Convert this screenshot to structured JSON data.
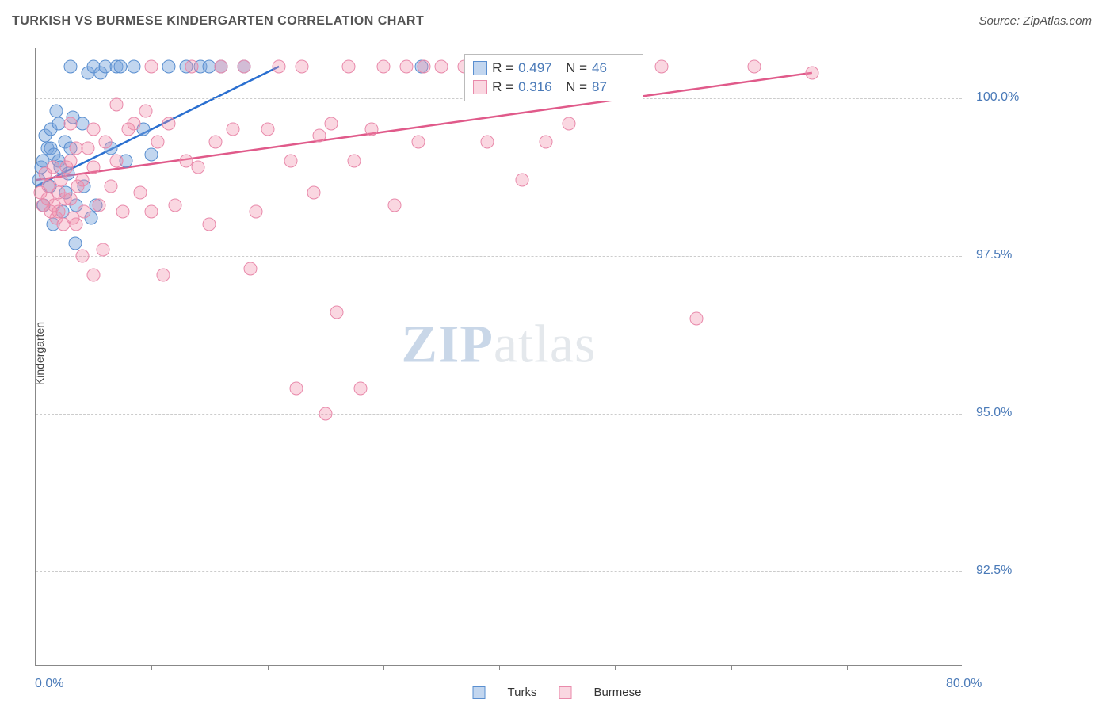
{
  "title": "TURKISH VS BURMESE KINDERGARTEN CORRELATION CHART",
  "source": "Source: ZipAtlas.com",
  "ylabel": "Kindergarten",
  "xlim": [
    0.0,
    80.0
  ],
  "ylim": [
    91.0,
    100.8
  ],
  "xtick_positions": [
    10,
    20,
    30,
    40,
    50,
    60,
    70,
    80
  ],
  "xlim_labels": [
    "0.0%",
    "80.0%"
  ],
  "yticks": [
    {
      "v": 92.5,
      "label": "92.5%"
    },
    {
      "v": 95.0,
      "label": "95.0%"
    },
    {
      "v": 97.5,
      "label": "97.5%"
    },
    {
      "v": 100.0,
      "label": "100.0%"
    }
  ],
  "colors": {
    "turks_fill": "rgba(120,165,220,0.45)",
    "turks_stroke": "#5a8fd0",
    "burmese_fill": "rgba(240,140,170,0.35)",
    "burmese_stroke": "#e98aab",
    "turks_line": "#2a6fd0",
    "burmese_line": "#e05a8a",
    "axis_label": "#4a7ab8",
    "grid": "#cccccc",
    "border": "#888888"
  },
  "marker_radius": 8.5,
  "series": [
    {
      "name": "Turks",
      "R": "0.497",
      "N": "46",
      "color_fill_key": "turks_fill",
      "color_stroke_key": "turks_stroke",
      "trend": {
        "x1": 0,
        "y1": 98.6,
        "x2": 21,
        "y2": 100.5,
        "color_key": "turks_line"
      },
      "points": [
        [
          0.3,
          98.7
        ],
        [
          0.5,
          98.9
        ],
        [
          0.6,
          99.0
        ],
        [
          0.8,
          99.4
        ],
        [
          0.7,
          98.3
        ],
        [
          1.0,
          99.2
        ],
        [
          1.2,
          98.6
        ],
        [
          1.3,
          99.5
        ],
        [
          1.5,
          98.0
        ],
        [
          1.3,
          99.2
        ],
        [
          1.6,
          99.1
        ],
        [
          1.8,
          99.8
        ],
        [
          2.0,
          99.0
        ],
        [
          2.1,
          98.9
        ],
        [
          2.0,
          99.6
        ],
        [
          2.3,
          98.2
        ],
        [
          2.5,
          99.3
        ],
        [
          2.6,
          98.5
        ],
        [
          2.8,
          98.8
        ],
        [
          3.0,
          99.2
        ],
        [
          3.0,
          100.5
        ],
        [
          3.2,
          99.7
        ],
        [
          3.5,
          98.3
        ],
        [
          3.4,
          97.7
        ],
        [
          4.0,
          99.6
        ],
        [
          4.2,
          98.6
        ],
        [
          4.5,
          100.4
        ],
        [
          4.8,
          98.1
        ],
        [
          5.0,
          100.5
        ],
        [
          5.2,
          98.3
        ],
        [
          5.6,
          100.4
        ],
        [
          6.0,
          100.5
        ],
        [
          6.5,
          99.2
        ],
        [
          7.0,
          100.5
        ],
        [
          7.3,
          100.5
        ],
        [
          7.8,
          99.0
        ],
        [
          8.5,
          100.5
        ],
        [
          9.3,
          99.5
        ],
        [
          10.0,
          99.1
        ],
        [
          11.5,
          100.5
        ],
        [
          13.0,
          100.5
        ],
        [
          14.2,
          100.5
        ],
        [
          15.0,
          100.5
        ],
        [
          16.0,
          100.5
        ],
        [
          18.0,
          100.5
        ],
        [
          33.3,
          100.5
        ]
      ]
    },
    {
      "name": "Burmese",
      "R": "0.316",
      "N": "87",
      "color_fill_key": "burmese_fill",
      "color_stroke_key": "burmese_stroke",
      "trend": {
        "x1": 0,
        "y1": 98.7,
        "x2": 67,
        "y2": 100.4,
        "color_key": "burmese_line"
      },
      "points": [
        [
          0.4,
          98.5
        ],
        [
          0.6,
          98.3
        ],
        [
          0.8,
          98.8
        ],
        [
          1.0,
          98.4
        ],
        [
          1.1,
          98.6
        ],
        [
          1.3,
          98.2
        ],
        [
          1.5,
          98.9
        ],
        [
          1.6,
          98.3
        ],
        [
          1.8,
          98.1
        ],
        [
          2.0,
          98.5
        ],
        [
          2.0,
          98.2
        ],
        [
          2.2,
          98.7
        ],
        [
          2.4,
          98.0
        ],
        [
          2.5,
          98.4
        ],
        [
          2.7,
          98.9
        ],
        [
          3.0,
          98.4
        ],
        [
          3.0,
          99.0
        ],
        [
          3.0,
          99.6
        ],
        [
          3.2,
          98.1
        ],
        [
          3.5,
          99.2
        ],
        [
          3.5,
          98.0
        ],
        [
          3.6,
          98.6
        ],
        [
          4.0,
          98.7
        ],
        [
          4.0,
          97.5
        ],
        [
          4.2,
          98.2
        ],
        [
          4.5,
          99.2
        ],
        [
          5.0,
          98.9
        ],
        [
          5.0,
          99.5
        ],
        [
          5.0,
          97.2
        ],
        [
          5.5,
          98.3
        ],
        [
          5.8,
          97.6
        ],
        [
          6.0,
          99.3
        ],
        [
          6.5,
          98.6
        ],
        [
          7.0,
          99.0
        ],
        [
          7.0,
          99.9
        ],
        [
          7.5,
          98.2
        ],
        [
          8.0,
          99.5
        ],
        [
          8.5,
          99.6
        ],
        [
          9.0,
          98.5
        ],
        [
          9.5,
          99.8
        ],
        [
          10.0,
          98.2
        ],
        [
          10.0,
          100.5
        ],
        [
          10.5,
          99.3
        ],
        [
          11.0,
          97.2
        ],
        [
          11.5,
          99.6
        ],
        [
          12.0,
          98.3
        ],
        [
          13.0,
          99.0
        ],
        [
          13.5,
          100.5
        ],
        [
          14.0,
          98.9
        ],
        [
          15.0,
          98.0
        ],
        [
          15.5,
          99.3
        ],
        [
          16.0,
          100.5
        ],
        [
          17.0,
          99.5
        ],
        [
          18.0,
          100.5
        ],
        [
          18.5,
          97.3
        ],
        [
          19.0,
          98.2
        ],
        [
          20.0,
          99.5
        ],
        [
          21.0,
          100.5
        ],
        [
          22.0,
          99.0
        ],
        [
          22.5,
          95.4
        ],
        [
          23.0,
          100.5
        ],
        [
          24.0,
          98.5
        ],
        [
          24.5,
          99.4
        ],
        [
          25.0,
          95.0
        ],
        [
          25.5,
          99.6
        ],
        [
          26.0,
          96.6
        ],
        [
          27.0,
          100.5
        ],
        [
          27.5,
          99.0
        ],
        [
          28.0,
          95.4
        ],
        [
          29.0,
          99.5
        ],
        [
          30.0,
          100.5
        ],
        [
          31.0,
          98.3
        ],
        [
          32.0,
          100.5
        ],
        [
          33.0,
          99.3
        ],
        [
          33.5,
          100.5
        ],
        [
          35.0,
          100.5
        ],
        [
          37.0,
          100.5
        ],
        [
          39.0,
          99.3
        ],
        [
          41.0,
          100.5
        ],
        [
          42.0,
          98.7
        ],
        [
          44.0,
          99.3
        ],
        [
          46.0,
          99.6
        ],
        [
          48.0,
          100.5
        ],
        [
          54.0,
          100.5
        ],
        [
          57.0,
          96.5
        ],
        [
          62.0,
          100.5
        ],
        [
          67.0,
          100.4
        ]
      ]
    }
  ],
  "footer_legend": [
    "Turks",
    "Burmese"
  ],
  "watermark": {
    "part1": "ZIP",
    "part2": "atlas"
  }
}
